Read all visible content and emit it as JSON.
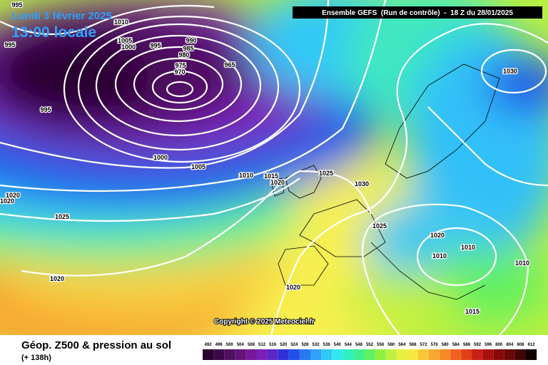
{
  "header": {
    "date": "Lundi 3 février 2025",
    "time": "13:00 locale",
    "run": "Ensemble GEFS  (Run de contrôle)  -  18 Z du 28/01/2025"
  },
  "isobar_labels": [
    "995",
    "995",
    "1010",
    "1005",
    "1000",
    "995",
    "990",
    "985",
    "980",
    "975",
    "970",
    "965",
    "995",
    "1000",
    "1005",
    "1010",
    "1015",
    "1020",
    "1025",
    "1030",
    "1030",
    "1025",
    "1020",
    "1010",
    "1010",
    "1010",
    "1020",
    "1020",
    "1025",
    "1020",
    "1020",
    "1015"
  ],
  "copyright": "Copyright © 2025 Meteociel.fr",
  "footer": {
    "title": "Géop. Z500 & pression au sol",
    "lead": "(+ 138h)"
  },
  "legend": [
    {
      "label": 492,
      "color": "#2a0030"
    },
    {
      "label": 496,
      "color": "#3c0a48"
    },
    {
      "label": 500,
      "color": "#501060"
    },
    {
      "label": 504,
      "color": "#641478"
    },
    {
      "label": 508,
      "color": "#78189a"
    },
    {
      "label": 512,
      "color": "#7a20b8"
    },
    {
      "label": 516,
      "color": "#5a28c8"
    },
    {
      "label": 520,
      "color": "#3030d8"
    },
    {
      "label": 524,
      "color": "#2050e8"
    },
    {
      "label": 528,
      "color": "#2878f0"
    },
    {
      "label": 532,
      "color": "#30a0f8"
    },
    {
      "label": 536,
      "color": "#30c8f8"
    },
    {
      "label": 540,
      "color": "#30e8f0"
    },
    {
      "label": 544,
      "color": "#30f0c0"
    },
    {
      "label": 548,
      "color": "#40f090"
    },
    {
      "label": 552,
      "color": "#60f060"
    },
    {
      "label": 556,
      "color": "#90f040"
    },
    {
      "label": 560,
      "color": "#c0f040"
    },
    {
      "label": 564,
      "color": "#e8f040"
    },
    {
      "label": 568,
      "color": "#f8e840"
    },
    {
      "label": 572,
      "color": "#f8c838"
    },
    {
      "label": 576,
      "color": "#f8a830"
    },
    {
      "label": 580,
      "color": "#f88828"
    },
    {
      "label": 584,
      "color": "#f06020"
    },
    {
      "label": 588,
      "color": "#e04018"
    },
    {
      "label": 592,
      "color": "#c82018"
    },
    {
      "label": 596,
      "color": "#a81010"
    },
    {
      "label": 600,
      "color": "#880808"
    },
    {
      "label": 604,
      "color": "#680808"
    },
    {
      "label": 608,
      "color": "#400404"
    },
    {
      "label": 612,
      "color": "#100000"
    }
  ]
}
